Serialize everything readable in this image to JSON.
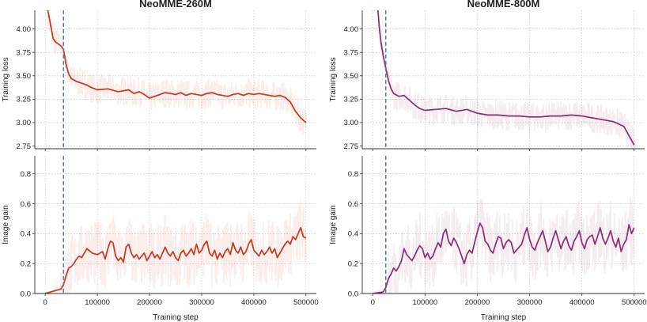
{
  "chart_data": [
    {
      "type": "line",
      "title": "NeoMME-260M",
      "xlabel": "",
      "ylabel": "Training loss",
      "xlim": [
        -20000,
        520000
      ],
      "ylim": [
        2.72,
        4.2
      ],
      "yticks": [
        2.75,
        3.0,
        3.25,
        3.5,
        3.75,
        4.0
      ],
      "grid": true,
      "color": "#c8361b",
      "vline_x": 35000,
      "series": [
        {
          "x": [
            5000,
            10000,
            15000,
            20000,
            25000,
            30000,
            35000,
            40000,
            45000,
            50000,
            60000,
            70000,
            80000,
            90000,
            100000,
            120000,
            140000,
            160000,
            170000,
            180000,
            190000,
            200000,
            210000,
            220000,
            230000,
            240000,
            250000,
            260000,
            270000,
            280000,
            290000,
            300000,
            310000,
            320000,
            330000,
            340000,
            350000,
            360000,
            370000,
            380000,
            390000,
            400000,
            410000,
            420000,
            430000,
            440000,
            450000,
            460000,
            470000,
            480000,
            490000,
            500000
          ],
          "values": [
            4.2,
            4.05,
            3.9,
            3.86,
            3.84,
            3.82,
            3.78,
            3.62,
            3.52,
            3.47,
            3.44,
            3.42,
            3.4,
            3.37,
            3.35,
            3.36,
            3.33,
            3.35,
            3.31,
            3.33,
            3.3,
            3.26,
            3.28,
            3.3,
            3.32,
            3.31,
            3.3,
            3.32,
            3.29,
            3.31,
            3.3,
            3.29,
            3.31,
            3.32,
            3.3,
            3.29,
            3.28,
            3.3,
            3.31,
            3.29,
            3.31,
            3.3,
            3.31,
            3.3,
            3.29,
            3.28,
            3.29,
            3.27,
            3.22,
            3.12,
            3.05,
            3.0
          ]
        }
      ]
    },
    {
      "type": "line",
      "title": "NeoMME-800M",
      "xlabel": "",
      "ylabel": "Training loss",
      "xlim": [
        -20000,
        520000
      ],
      "ylim": [
        2.72,
        4.2
      ],
      "yticks": [
        2.75,
        3.0,
        3.25,
        3.5,
        3.75,
        4.0
      ],
      "grid": true,
      "color": "#8b2c72",
      "vline_x": 25000,
      "series": [
        {
          "x": [
            10000,
            13000,
            16000,
            20000,
            25000,
            30000,
            35000,
            40000,
            50000,
            60000,
            70000,
            80000,
            90000,
            100000,
            120000,
            140000,
            160000,
            180000,
            200000,
            220000,
            240000,
            260000,
            280000,
            300000,
            320000,
            340000,
            360000,
            380000,
            400000,
            420000,
            440000,
            460000,
            480000,
            500000
          ],
          "values": [
            4.2,
            4.0,
            3.85,
            3.72,
            3.58,
            3.45,
            3.36,
            3.31,
            3.28,
            3.29,
            3.24,
            3.19,
            3.15,
            3.13,
            3.14,
            3.15,
            3.12,
            3.14,
            3.1,
            3.08,
            3.08,
            3.07,
            3.07,
            3.06,
            3.06,
            3.07,
            3.07,
            3.08,
            3.07,
            3.05,
            3.03,
            3.01,
            2.96,
            2.76
          ]
        }
      ]
    },
    {
      "type": "line",
      "title": "",
      "xlabel": "Training step",
      "ylabel": "Image gain",
      "xlim": [
        -20000,
        520000
      ],
      "ylim": [
        0,
        0.92
      ],
      "yticks": [
        0.0,
        0.2,
        0.4,
        0.6,
        0.8
      ],
      "xticks": [
        0,
        100000,
        200000,
        300000,
        400000,
        500000
      ],
      "grid": true,
      "color": "#c8361b",
      "vline_x": 35000,
      "series": [
        {
          "x": [
            0,
            10000,
            20000,
            30000,
            35000,
            40000,
            45000,
            50000,
            55000,
            60000,
            65000,
            70000,
            75000,
            80000,
            90000,
            100000,
            110000,
            115000,
            120000,
            125000,
            130000,
            135000,
            140000,
            145000,
            150000,
            155000,
            160000,
            165000,
            170000,
            175000,
            180000,
            185000,
            190000,
            195000,
            200000,
            205000,
            210000,
            215000,
            220000,
            225000,
            230000,
            235000,
            240000,
            245000,
            250000,
            255000,
            260000,
            265000,
            270000,
            275000,
            280000,
            285000,
            290000,
            295000,
            300000,
            305000,
            310000,
            315000,
            320000,
            325000,
            330000,
            335000,
            340000,
            345000,
            350000,
            355000,
            360000,
            365000,
            370000,
            375000,
            380000,
            385000,
            390000,
            395000,
            400000,
            405000,
            410000,
            415000,
            420000,
            425000,
            430000,
            435000,
            440000,
            445000,
            450000,
            455000,
            460000,
            465000,
            470000,
            475000,
            480000,
            485000,
            490000,
            495000,
            500000
          ],
          "values": [
            0.0,
            0.01,
            0.02,
            0.03,
            0.06,
            0.12,
            0.17,
            0.18,
            0.2,
            0.23,
            0.25,
            0.24,
            0.27,
            0.3,
            0.27,
            0.26,
            0.28,
            0.23,
            0.3,
            0.35,
            0.34,
            0.25,
            0.22,
            0.24,
            0.21,
            0.31,
            0.33,
            0.27,
            0.24,
            0.26,
            0.23,
            0.25,
            0.27,
            0.22,
            0.25,
            0.28,
            0.24,
            0.26,
            0.23,
            0.27,
            0.31,
            0.27,
            0.25,
            0.28,
            0.24,
            0.22,
            0.27,
            0.29,
            0.25,
            0.27,
            0.3,
            0.26,
            0.33,
            0.27,
            0.29,
            0.33,
            0.35,
            0.27,
            0.25,
            0.29,
            0.23,
            0.27,
            0.24,
            0.28,
            0.3,
            0.26,
            0.34,
            0.29,
            0.27,
            0.31,
            0.26,
            0.28,
            0.33,
            0.36,
            0.29,
            0.27,
            0.25,
            0.29,
            0.26,
            0.28,
            0.31,
            0.27,
            0.3,
            0.24,
            0.27,
            0.3,
            0.33,
            0.35,
            0.33,
            0.38,
            0.36,
            0.4,
            0.44,
            0.38,
            0.37
          ]
        }
      ]
    },
    {
      "type": "line",
      "title": "",
      "xlabel": "Training step",
      "ylabel": "Image gain",
      "xlim": [
        -20000,
        520000
      ],
      "ylim": [
        0,
        0.92
      ],
      "yticks": [
        0.0,
        0.2,
        0.4,
        0.6,
        0.8
      ],
      "xticks": [
        0,
        100000,
        200000,
        300000,
        400000,
        500000
      ],
      "grid": true,
      "color": "#8b2c72",
      "vline_x": 25000,
      "series": [
        {
          "x": [
            0,
            10000,
            20000,
            25000,
            30000,
            35000,
            40000,
            45000,
            50000,
            55000,
            60000,
            65000,
            70000,
            75000,
            80000,
            85000,
            90000,
            95000,
            100000,
            105000,
            110000,
            115000,
            120000,
            125000,
            130000,
            135000,
            140000,
            145000,
            150000,
            155000,
            160000,
            165000,
            170000,
            175000,
            180000,
            185000,
            190000,
            195000,
            200000,
            205000,
            210000,
            215000,
            220000,
            225000,
            230000,
            235000,
            240000,
            245000,
            250000,
            255000,
            260000,
            265000,
            270000,
            275000,
            280000,
            285000,
            290000,
            295000,
            300000,
            305000,
            310000,
            315000,
            320000,
            325000,
            330000,
            335000,
            340000,
            345000,
            350000,
            355000,
            360000,
            365000,
            370000,
            375000,
            380000,
            385000,
            390000,
            395000,
            400000,
            405000,
            410000,
            415000,
            420000,
            425000,
            430000,
            435000,
            440000,
            445000,
            450000,
            455000,
            460000,
            465000,
            470000,
            475000,
            480000,
            485000,
            490000,
            495000,
            500000
          ],
          "values": [
            0.0,
            0.005,
            0.01,
            0.04,
            0.1,
            0.13,
            0.17,
            0.15,
            0.18,
            0.22,
            0.3,
            0.26,
            0.24,
            0.22,
            0.25,
            0.29,
            0.32,
            0.3,
            0.24,
            0.27,
            0.23,
            0.25,
            0.3,
            0.34,
            0.31,
            0.4,
            0.43,
            0.35,
            0.32,
            0.37,
            0.34,
            0.3,
            0.25,
            0.2,
            0.26,
            0.29,
            0.27,
            0.34,
            0.41,
            0.47,
            0.44,
            0.35,
            0.33,
            0.29,
            0.27,
            0.33,
            0.38,
            0.37,
            0.3,
            0.34,
            0.36,
            0.34,
            0.27,
            0.29,
            0.31,
            0.33,
            0.39,
            0.44,
            0.36,
            0.31,
            0.29,
            0.34,
            0.38,
            0.42,
            0.35,
            0.28,
            0.31,
            0.37,
            0.42,
            0.36,
            0.3,
            0.35,
            0.38,
            0.32,
            0.29,
            0.35,
            0.38,
            0.42,
            0.34,
            0.3,
            0.36,
            0.38,
            0.39,
            0.33,
            0.38,
            0.44,
            0.37,
            0.33,
            0.37,
            0.42,
            0.35,
            0.31,
            0.37,
            0.28,
            0.33,
            0.36,
            0.46,
            0.4,
            0.44
          ]
        }
      ]
    }
  ]
}
